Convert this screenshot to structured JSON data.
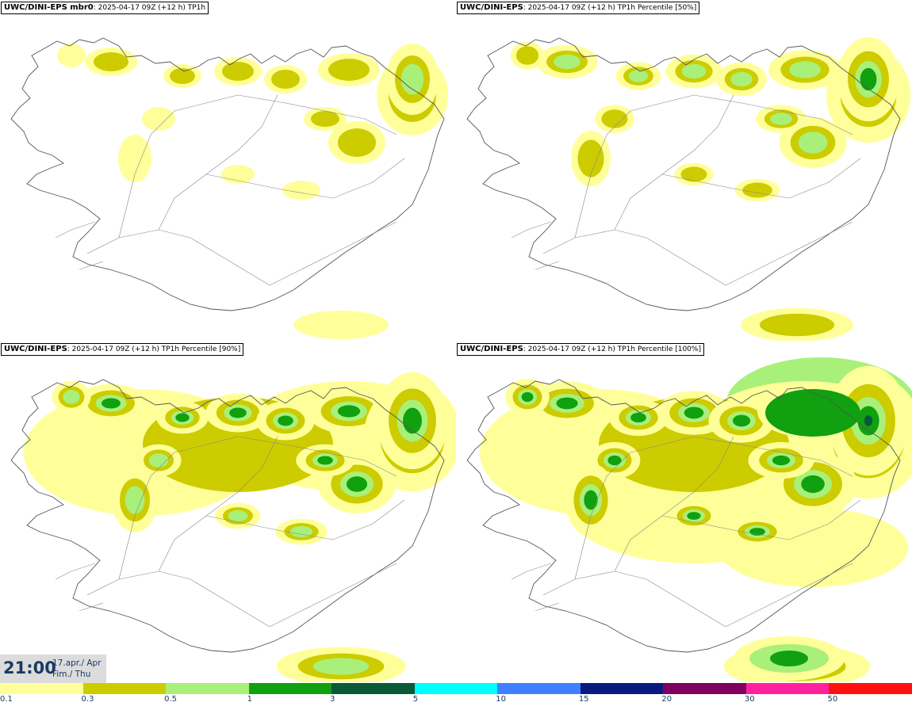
{
  "panels": [
    {
      "model": "UWC/DINI-EPS mbr0",
      "info": ": 2025-04-17 09Z (+12 h) TP1h",
      "intensity": 1
    },
    {
      "model": "UWC/DINI-EPS",
      "info": ": 2025-04-17 09Z (+12 h) TP1h Percentile [50%]",
      "intensity": 2
    },
    {
      "model": "UWC/DINI-EPS",
      "info": ": 2025-04-17 09Z (+12 h) TP1h Percentile [90%]",
      "intensity": 3
    },
    {
      "model": "UWC/DINI-EPS",
      "info": ": 2025-04-17 09Z (+12 h) TP1h Percentile [100%]",
      "intensity": 4
    }
  ],
  "timestamp": {
    "time": "21:00",
    "date_line1": "17.apr./ Apr",
    "date_line2": "Fim./ Thu"
  },
  "legend": {
    "ticks": [
      "0.1",
      "0.3",
      "0.5",
      "1",
      "3",
      "5",
      "10",
      "15",
      "20",
      "30",
      "50"
    ],
    "colors": [
      "#ffff99",
      "#cccc00",
      "#a8f07a",
      "#10a010",
      "#0a5a3a",
      "#00ffff",
      "#4080ff",
      "#0a1a80",
      "#800060",
      "#ff20a0",
      "#ff1010"
    ]
  }
}
